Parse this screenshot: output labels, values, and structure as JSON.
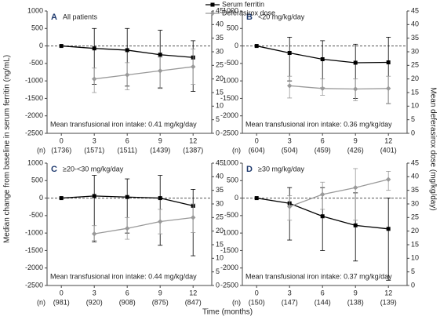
{
  "ylabel": "Median change from baseline in serum ferritin (ng/mL)",
  "y2label": "Mean deferasirox dose (mg/kg/day)",
  "xlabel": "Time (months)",
  "chart_data": [
    {
      "type": "line",
      "label": "A",
      "title": "All patients",
      "annotation": "Mean transfusional iron intake: 0.41 mg/kg/day",
      "x": [
        0,
        3,
        6,
        9,
        12
      ],
      "n_label": "(n)",
      "n_counts": [
        "(1736)",
        "(1571)",
        "(1511)",
        "(1439)",
        "(1387)"
      ],
      "xlim": [
        -1.3,
        13.7
      ],
      "xticks": [
        0,
        3,
        6,
        9,
        12
      ],
      "ylim": [
        -2500,
        1000
      ],
      "yticks": [
        1000,
        500,
        0,
        -500,
        -1000,
        -1500,
        -2000,
        -2500
      ],
      "y2lim": [
        0,
        45
      ],
      "y2ticks": [
        45,
        40,
        35,
        30,
        25,
        20,
        15,
        10,
        5,
        0
      ],
      "series": [
        {
          "name": "Serum ferritin",
          "color": "#000000",
          "values": [
            0,
            -70,
            -120,
            -250,
            -330
          ],
          "error_low": [
            null,
            -1100,
            -1150,
            -1200,
            -1300
          ],
          "error_high": [
            null,
            500,
            500,
            450,
            150
          ]
        },
        {
          "name": "Deferasirox dose",
          "color": "#999999",
          "axis": "y2",
          "values": [
            null,
            20,
            21.5,
            23,
            24.5
          ],
          "error_low": [
            null,
            15,
            16,
            16.5,
            18
          ],
          "error_high": [
            null,
            24,
            26,
            28,
            31
          ]
        }
      ]
    },
    {
      "type": "line",
      "label": "B",
      "title": "<20 mg/kg/day",
      "annotation": "Mean transfusional iron intake: 0.36 mg/kg/day",
      "x": [
        0,
        3,
        6,
        9,
        12
      ],
      "n_label": "(n)",
      "n_counts": [
        "(604)",
        "(504)",
        "(459)",
        "(426)",
        "(401)"
      ],
      "xlim": [
        -1.3,
        13.7
      ],
      "xticks": [
        0,
        3,
        6,
        9,
        12
      ],
      "ylim": [
        -2500,
        1000
      ],
      "yticks": [
        1000,
        500,
        0,
        -500,
        -1000,
        -1500,
        -2000,
        -2500
      ],
      "y2lim": [
        0,
        45
      ],
      "y2ticks": [
        45,
        40,
        35,
        30,
        25,
        20,
        15,
        10,
        5,
        0
      ],
      "series": [
        {
          "name": "Serum ferritin",
          "color": "#000000",
          "values": [
            0,
            -200,
            -380,
            -480,
            -470
          ],
          "error_low": [
            null,
            -1000,
            -1200,
            -1500,
            -1650
          ],
          "error_high": [
            null,
            250,
            150,
            50,
            250
          ]
        },
        {
          "name": "Deferasirox dose",
          "color": "#999999",
          "axis": "y2",
          "values": [
            null,
            17.5,
            16.5,
            16.3,
            16.5
          ],
          "error_low": [
            null,
            13,
            14,
            12,
            11
          ],
          "error_high": [
            null,
            21,
            20,
            20,
            21
          ]
        }
      ]
    },
    {
      "type": "line",
      "label": "C",
      "title": "≥20-<30 mg/kg/day",
      "annotation": "Mean transfusional iron intake: 0.44 mg/kg/day",
      "x": [
        0,
        3,
        6,
        9,
        12
      ],
      "n_label": "(n)",
      "n_counts": [
        "(981)",
        "(920)",
        "(908)",
        "(875)",
        "(847)"
      ],
      "xlim": [
        -1.3,
        13.7
      ],
      "xticks": [
        0,
        3,
        6,
        9,
        12
      ],
      "ylim": [
        -2500,
        1000
      ],
      "yticks": [
        1000,
        500,
        0,
        -500,
        -1000,
        -1500,
        -2000,
        -2500
      ],
      "y2lim": [
        0,
        45
      ],
      "y2ticks": [
        45,
        40,
        35,
        30,
        25,
        20,
        15,
        10,
        5,
        0
      ],
      "series": [
        {
          "name": "Serum ferritin",
          "color": "#000000",
          "values": [
            0,
            60,
            30,
            0,
            -220
          ],
          "error_low": [
            null,
            -1250,
            -1000,
            -1350,
            -1650
          ],
          "error_high": [
            null,
            650,
            550,
            650,
            250
          ]
        },
        {
          "name": "Deferasirox dose",
          "color": "#999999",
          "axis": "y2",
          "values": [
            null,
            19,
            21,
            23.5,
            25
          ],
          "error_low": [
            null,
            16.5,
            17,
            19,
            19.5
          ],
          "error_high": [
            null,
            22,
            25,
            28,
            30
          ]
        }
      ]
    },
    {
      "type": "line",
      "label": "D",
      "title": "≥30 mg/kg/day",
      "annotation": "Mean transfusional iron intake: 0.37 mg/kg/day",
      "x": [
        0,
        3,
        6,
        9,
        12
      ],
      "n_label": "(n)",
      "n_counts": [
        "(150)",
        "(147)",
        "(144)",
        "(138)",
        "(139)"
      ],
      "xlim": [
        -1.3,
        13.7
      ],
      "xticks": [
        0,
        3,
        6,
        9,
        12
      ],
      "ylim": [
        -2500,
        1000
      ],
      "yticks": [
        1000,
        500,
        0,
        -500,
        -1000,
        -1500,
        -2000,
        -2500
      ],
      "y2lim": [
        0,
        45
      ],
      "y2ticks": [
        45,
        40,
        35,
        30,
        25,
        20,
        15,
        10,
        5,
        0
      ],
      "series": [
        {
          "name": "Serum ferritin",
          "color": "#000000",
          "values": [
            0,
            -150,
            -520,
            -780,
            -880
          ],
          "error_low": [
            null,
            -1200,
            -1500,
            -1800,
            -2350
          ],
          "error_high": [
            null,
            300,
            300,
            150,
            0
          ]
        },
        {
          "name": "Deferasirox dose",
          "color": "#999999",
          "axis": "y2",
          "values": [
            null,
            29,
            33.5,
            36,
            39
          ],
          "error_low": [
            null,
            24,
            28,
            24,
            35
          ],
          "error_high": [
            null,
            33,
            38,
            43,
            42
          ]
        }
      ]
    }
  ]
}
